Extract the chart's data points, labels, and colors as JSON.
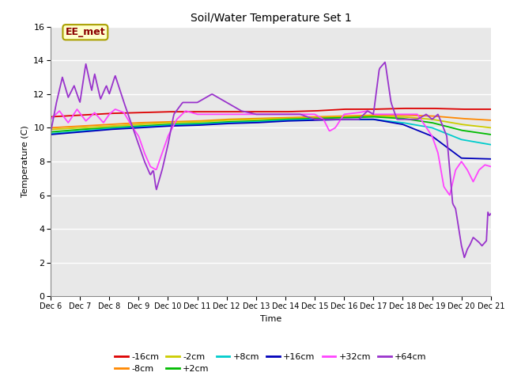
{
  "title": "Soil/Water Temperature Set 1",
  "xlabel": "Time",
  "ylabel": "Temperature (C)",
  "ylim": [
    0,
    16
  ],
  "yticks": [
    0,
    2,
    4,
    6,
    8,
    10,
    12,
    14,
    16
  ],
  "x_labels": [
    "Dec 6",
    "Dec 7",
    "Dec 8",
    "Dec 9",
    "Dec 10",
    "Dec 11",
    "Dec 12",
    "Dec 13",
    "Dec 14",
    "Dec 15",
    "Dec 16",
    "Dec 17",
    "Dec 18",
    "Dec 19",
    "Dec 20",
    "Dec 21"
  ],
  "num_points": 600,
  "background_color": "#e8e8e8",
  "plot_bg": "#e8e8e8",
  "series": [
    {
      "label": "-16cm",
      "color": "#dd0000"
    },
    {
      "label": "-8cm",
      "color": "#ff8800"
    },
    {
      "label": "-2cm",
      "color": "#cccc00"
    },
    {
      "label": "+2cm",
      "color": "#00bb00"
    },
    {
      "label": "+8cm",
      "color": "#00cccc"
    },
    {
      "label": "+16cm",
      "color": "#0000bb"
    },
    {
      "label": "+32cm",
      "color": "#ff44ff"
    },
    {
      "label": "+64cm",
      "color": "#9933cc"
    }
  ],
  "annotation_text": "EE_met",
  "annotation_color": "#8b0000",
  "annotation_bg": "#ffffcc",
  "annotation_border": "#aaa000"
}
